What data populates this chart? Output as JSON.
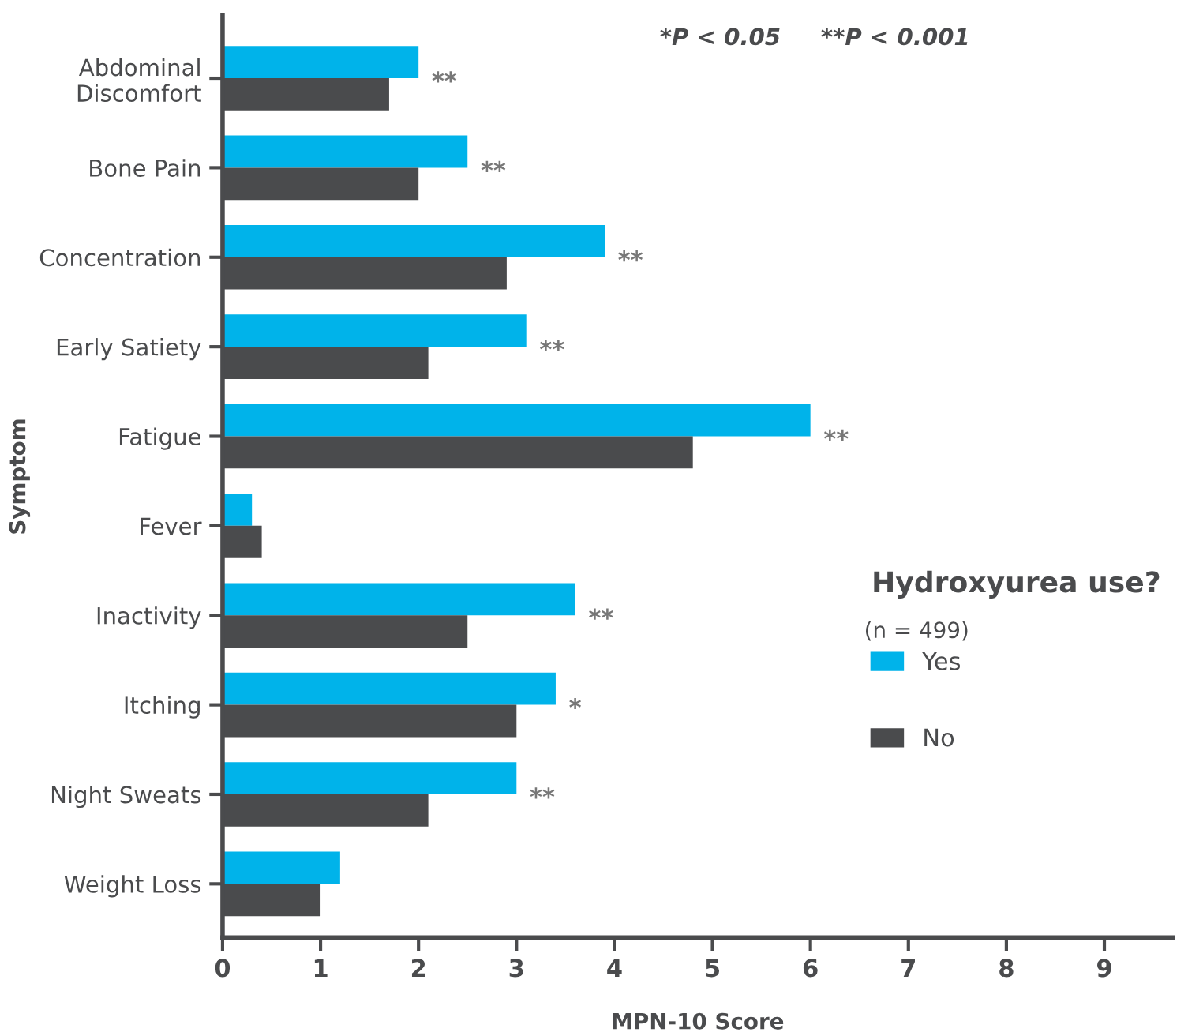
{
  "chart_data": {
    "type": "bar",
    "orientation": "horizontal",
    "xlabel": "MPN-10 Score",
    "ylabel": "Symptom",
    "legend_title": "Hydroxyurea use?",
    "categories": [
      "Abdominal\nDiscomfort",
      "Bone Pain",
      "Concentration",
      "Early Satiety",
      "Fatigue",
      "Fever",
      "Inactivity",
      "Itching",
      "Night Sweats",
      "Weight Loss"
    ],
    "series": [
      {
        "name": "Yes",
        "color": "#00b3ea",
        "values": [
          2.0,
          2.5,
          3.9,
          3.1,
          6.0,
          0.3,
          3.6,
          3.4,
          3.0,
          1.2
        ]
      },
      {
        "name": "No",
        "color": "#4a4b4d",
        "values": [
          1.7,
          2.0,
          2.9,
          2.1,
          4.8,
          0.4,
          2.5,
          3.0,
          2.1,
          1.0
        ]
      }
    ],
    "xlim": [
      0,
      9.7
    ],
    "xticks": [
      0,
      1,
      2,
      3,
      4,
      5,
      6,
      7,
      8,
      9
    ],
    "grid": false,
    "legend": "right",
    "annotations": [
      "*P < 0.05     **P < 0.001",
      "(n = 499)",
      {
        "text": "**",
        "x": 2.0,
        "y": "Abdominal\nDiscomfort"
      },
      {
        "text": "**",
        "x": 2.5,
        "y": "Bone Pain"
      },
      {
        "text": "**",
        "x": 3.9,
        "y": "Concentration"
      },
      {
        "text": "**",
        "x": 3.1,
        "y": "Early Satiety"
      },
      {
        "text": "**",
        "x": 6.0,
        "y": "Fatigue"
      },
      {
        "text": "**",
        "x": 3.6,
        "y": "Inactivity"
      },
      {
        "text": "*",
        "x": 3.4,
        "y": "Itching"
      },
      {
        "text": "**",
        "x": 3.0,
        "y": "Night Sweats"
      }
    ]
  }
}
